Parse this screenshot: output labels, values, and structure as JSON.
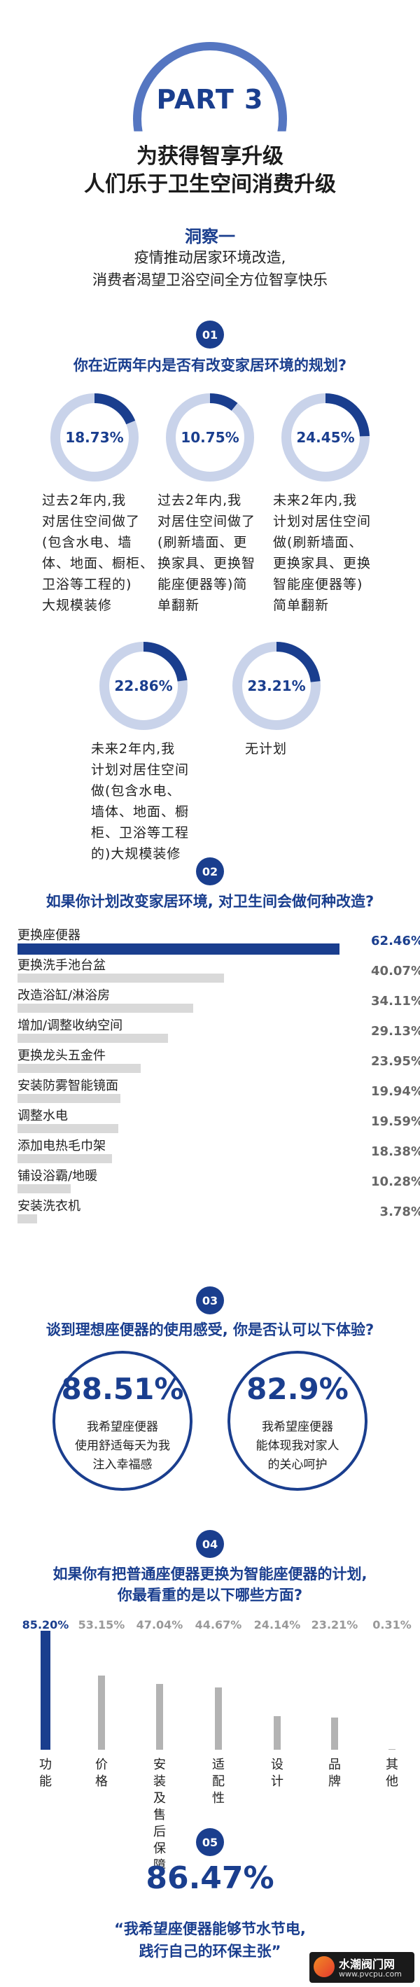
{
  "colors": {
    "primary": "#1a3e8e",
    "light_ring": "#c9d3ea",
    "track": "#d9d9d9",
    "muted_bar": "#b3b3b3"
  },
  "header": {
    "part": "PART 3",
    "title_line1": "为获得智享升级",
    "title_line2": "人们乐于卫生空间消费升级"
  },
  "insight": {
    "heading": "洞察一",
    "line1": "疫情推动居家环境改造,",
    "line2": "消费者渴望卫浴空间全方位智享快乐"
  },
  "sections": {
    "s1": {
      "num": "01",
      "question": "你在近两年内是否有改变家居环境的规划?"
    },
    "s2": {
      "num": "02",
      "question": "如果你计划改变家居环境, 对卫生间会做何种改造?"
    },
    "s3": {
      "num": "03",
      "question": "谈到理想座便器的使用感受, 你是否认可以下体验?"
    },
    "s4": {
      "num": "04",
      "question_line1": "如果你有把普通座便器更换为智能座便器的计划,",
      "question_line2": "你最看重的是以下哪些方面?"
    },
    "s5": {
      "num": "05",
      "value": "86.47%",
      "quote_line1": "“我希望座便器能够节水节电,",
      "quote_line2": "践行自己的环保主张”"
    }
  },
  "rings": [
    {
      "pct": "18.73%",
      "value": 18.73,
      "lines": [
        "过去2年内,我",
        "对居住空间做了",
        "(包含水电、墙",
        "体、地面、橱柜、",
        "卫浴等工程的)",
        "大规模装修"
      ]
    },
    {
      "pct": "10.75%",
      "value": 10.75,
      "lines": [
        "过去2年内,我",
        "对居住空间做了",
        "(刷新墙面、更",
        "换家具、更换智",
        "能座便器等)简",
        "单翻新"
      ]
    },
    {
      "pct": "24.45%",
      "value": 24.45,
      "lines": [
        "未来2年内,我",
        "计划对居住空间",
        "做(刷新墙面、",
        "更换家具、更换",
        "智能座便器等)",
        "简单翻新"
      ]
    },
    {
      "pct": "22.86%",
      "value": 22.86,
      "lines": [
        "未来2年内,我",
        "计划对居住空间",
        "做(包含水电、",
        "墙体、地面、橱",
        "柜、卫浴等工程",
        "的)大规模装修"
      ]
    },
    {
      "pct": "23.21%",
      "value": 23.21,
      "lines": [
        "无计划"
      ]
    }
  ],
  "chart_data": [
    {
      "type": "bar",
      "orientation": "horizontal",
      "categories": [
        "更换座便器",
        "更换洗手池台盆",
        "改造浴缸/淋浴房",
        "增加/调整收纳空间",
        "更换龙头五金件",
        "安装防雾智能镜面",
        "调整水电",
        "添加电热毛巾架",
        "铺设浴霸/地暖",
        "安装洗衣机"
      ],
      "values": [
        62.46,
        40.07,
        34.11,
        29.13,
        23.95,
        19.94,
        19.59,
        18.38,
        10.28,
        3.78
      ],
      "value_labels": [
        "62.46%",
        "40.07%",
        "34.11%",
        "29.13%",
        "23.95%",
        "19.94%",
        "19.59%",
        "18.38%",
        "10.28%",
        "3.78%"
      ],
      "xlim": [
        0,
        62.46
      ]
    },
    {
      "type": "bar",
      "orientation": "vertical",
      "categories": [
        "功能",
        "价格",
        "安装及售后保障",
        "适配性",
        "设计",
        "品牌",
        "其他"
      ],
      "values": [
        85.2,
        53.15,
        47.04,
        44.67,
        24.14,
        23.21,
        0.31
      ],
      "value_labels": [
        "85.20%",
        "53.15%",
        "47.04%",
        "44.67%",
        "24.14%",
        "23.21%",
        "0.31%"
      ],
      "ylim": [
        0,
        85.2
      ]
    }
  ],
  "experience": [
    {
      "pct": "88.51%",
      "lines": [
        "我希望座便器",
        "使用舒适每天为我",
        "注入幸福感"
      ]
    },
    {
      "pct": "82.9%",
      "lines": [
        "我希望座便器",
        "能体现我对家人",
        "的关心呵护"
      ]
    }
  ],
  "watermark": {
    "text": "水潮阀门网",
    "url": "www.pvcpu.com"
  }
}
